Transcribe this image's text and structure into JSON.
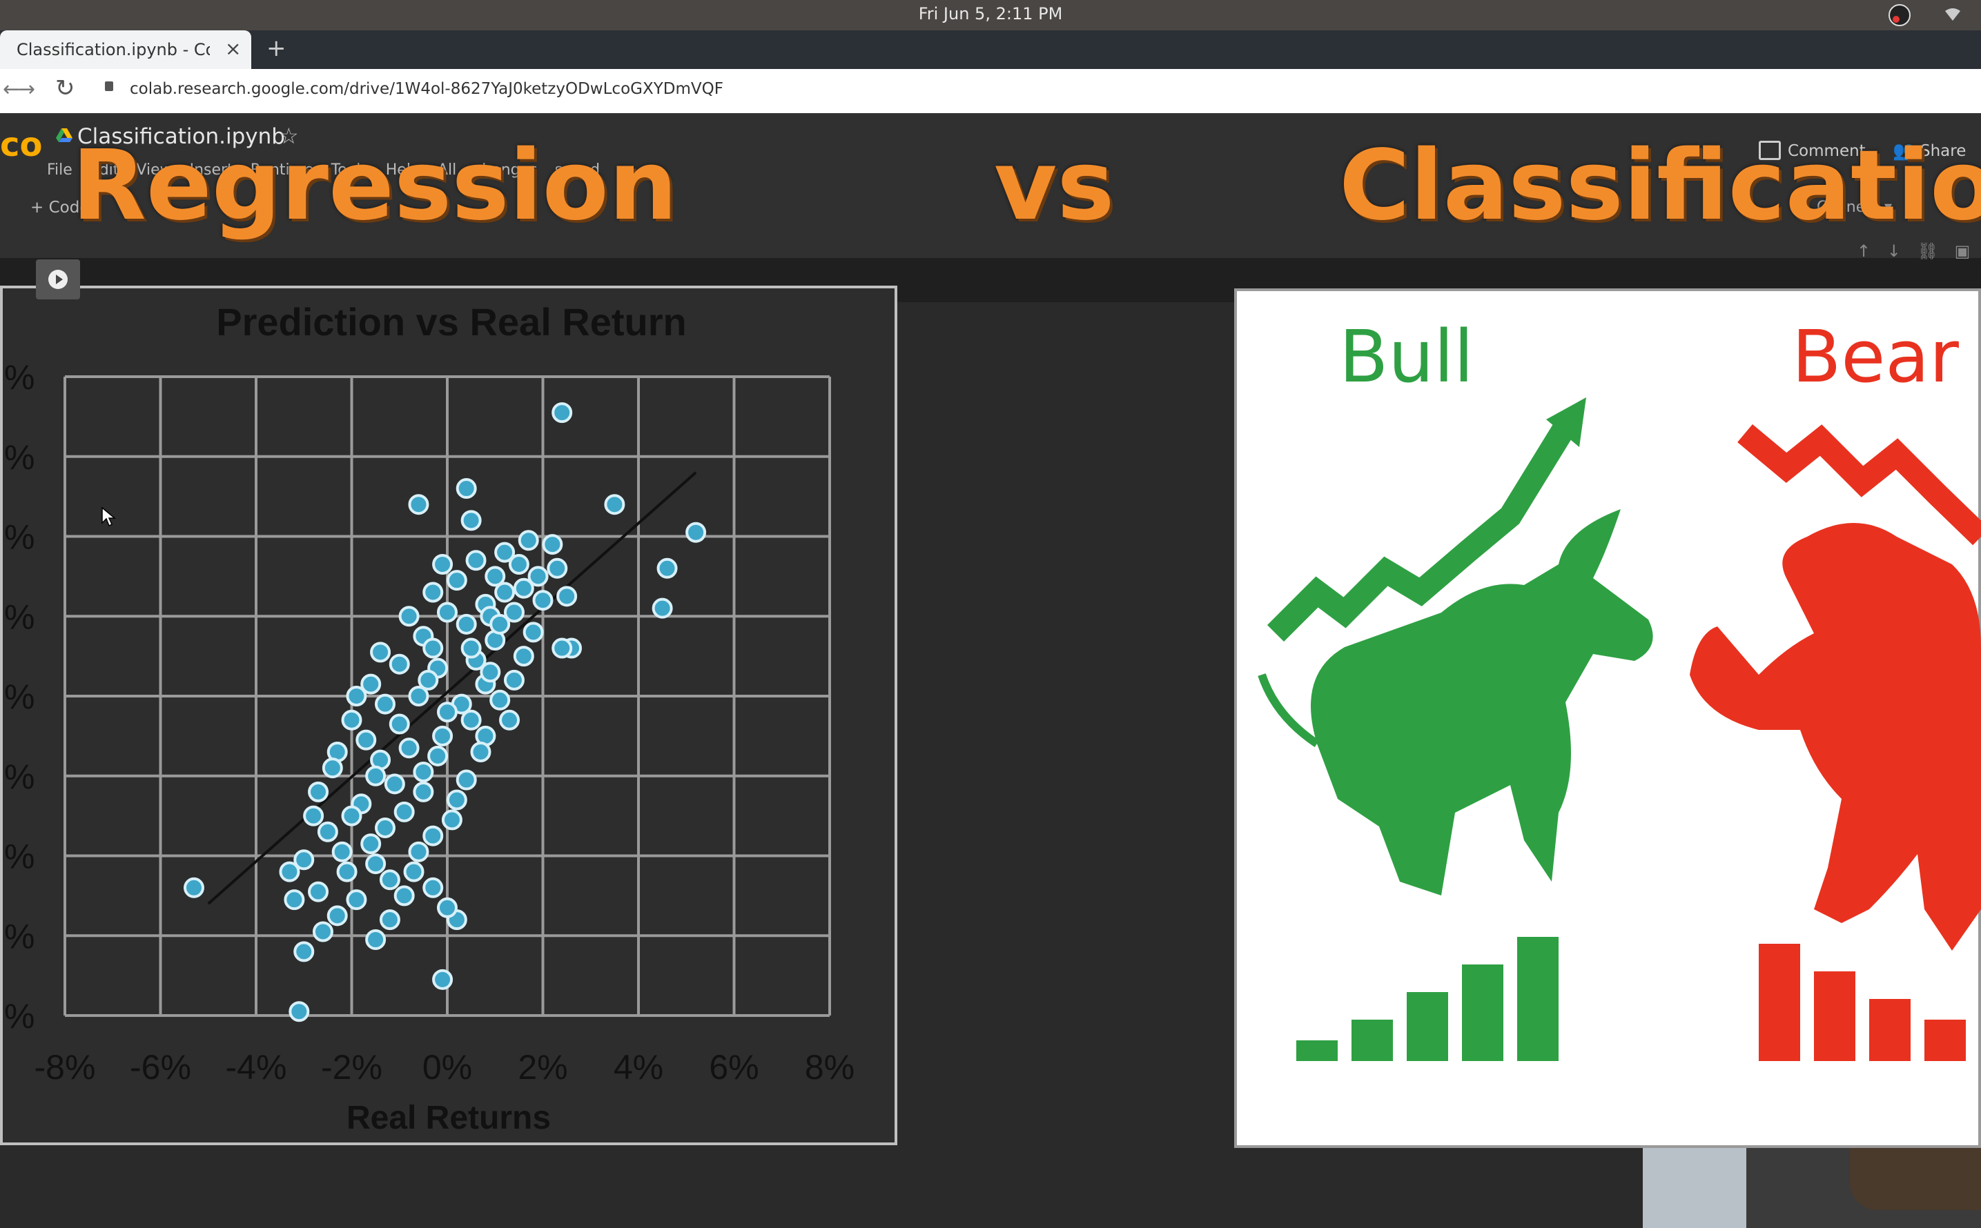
{
  "os": {
    "clock": "Fri Jun  5,  2:11 PM"
  },
  "browser": {
    "tab_title": "Classification.ipynb - Cola",
    "close_glyph": "×",
    "new_tab_glyph": "+",
    "url": "colab.research.google.com/drive/1W4ol-8627YaJ0ketzyODwLcoGXYDmVQF"
  },
  "colab": {
    "logo": "co",
    "notebook_title": "Classification.ipynb",
    "menu": "File Edit View Insert Runtime Tools Help All changes saved",
    "comment_label": "Comment",
    "share_label": "Share",
    "add_code_label": "+ Code",
    "connect_label": "Connect ▾"
  },
  "overlay": {
    "left": "Regression",
    "middle": "vs",
    "right": "Classification"
  },
  "chart_data": {
    "type": "scatter",
    "title": "Prediction vs Real Return",
    "xlabel": "Real Returns",
    "ylabel": "",
    "xlim": [
      -8,
      8
    ],
    "ylim": [
      -8,
      8
    ],
    "x_ticks": [
      "-8%",
      "-6%",
      "-4%",
      "-2%",
      "0%",
      "2%",
      "4%",
      "6%",
      "8%"
    ],
    "y_ticks": [
      "%",
      "%",
      "%",
      "%",
      "%",
      "%",
      "%",
      "%",
      "%"
    ],
    "grid": true,
    "trendline": [
      [
        -5,
        -5.2
      ],
      [
        5.2,
        5.6
      ]
    ],
    "points": [
      [
        2.4,
        7.1
      ],
      [
        0.4,
        5.2
      ],
      [
        -0.6,
        4.8
      ],
      [
        0.5,
        4.4
      ],
      [
        3.5,
        4.8
      ],
      [
        5.2,
        4.1
      ],
      [
        4.6,
        3.2
      ],
      [
        4.5,
        2.2
      ],
      [
        2.6,
        1.2
      ],
      [
        2.4,
        1.2
      ],
      [
        -5.3,
        -4.8
      ],
      [
        -3.2,
        -5.1
      ],
      [
        -3.0,
        -6.4
      ],
      [
        -2.6,
        -5.9
      ],
      [
        -1.5,
        -6.1
      ],
      [
        -0.1,
        -7.1
      ],
      [
        -3.1,
        -7.9
      ],
      [
        0.2,
        -5.6
      ],
      [
        1.7,
        3.9
      ],
      [
        2.2,
        3.8
      ],
      [
        2.3,
        3.2
      ],
      [
        1.5,
        3.3
      ],
      [
        1.0,
        3.0
      ],
      [
        0.2,
        2.9
      ],
      [
        -0.3,
        2.6
      ],
      [
        0.8,
        2.3
      ],
      [
        1.4,
        2.1
      ],
      [
        0.4,
        1.8
      ],
      [
        -0.5,
        1.5
      ],
      [
        1.0,
        1.4
      ],
      [
        1.6,
        1.0
      ],
      [
        0.6,
        0.9
      ],
      [
        -0.2,
        0.7
      ],
      [
        -1.0,
        0.8
      ],
      [
        0.8,
        0.3
      ],
      [
        1.4,
        0.4
      ],
      [
        -1.6,
        0.3
      ],
      [
        -0.6,
        0.0
      ],
      [
        0.3,
        -0.2
      ],
      [
        1.1,
        -0.1
      ],
      [
        -2.0,
        -0.6
      ],
      [
        -1.0,
        -0.7
      ],
      [
        -0.1,
        -1.0
      ],
      [
        0.8,
        -1.0
      ],
      [
        -2.3,
        -1.4
      ],
      [
        -1.4,
        -1.6
      ],
      [
        -0.5,
        -1.9
      ],
      [
        0.4,
        -2.1
      ],
      [
        -2.7,
        -2.4
      ],
      [
        -1.8,
        -2.7
      ],
      [
        -0.9,
        -2.9
      ],
      [
        0.1,
        -3.1
      ],
      [
        -2.5,
        -3.4
      ],
      [
        -1.6,
        -3.7
      ],
      [
        -0.6,
        -3.9
      ],
      [
        -3.0,
        -4.1
      ],
      [
        -2.1,
        -4.4
      ],
      [
        -1.2,
        -4.6
      ],
      [
        -0.3,
        -4.8
      ],
      [
        0.0,
        -5.3
      ],
      [
        -2.7,
        -4.9
      ],
      [
        -1.9,
        -5.1
      ],
      [
        -0.9,
        -5.0
      ],
      [
        1.6,
        2.7
      ],
      [
        2.0,
        2.4
      ],
      [
        1.8,
        1.6
      ],
      [
        0.9,
        2.0
      ],
      [
        0.0,
        2.1
      ],
      [
        -0.8,
        2.0
      ],
      [
        0.5,
        1.2
      ],
      [
        -0.4,
        0.4
      ],
      [
        -1.3,
        -0.2
      ],
      [
        0.5,
        -0.6
      ],
      [
        -1.7,
        -1.1
      ],
      [
        -0.2,
        -1.5
      ],
      [
        -1.1,
        -2.2
      ],
      [
        0.2,
        -2.6
      ],
      [
        -2.0,
        -3.0
      ],
      [
        -1.3,
        -3.3
      ],
      [
        -0.3,
        -3.5
      ],
      [
        -2.2,
        -3.9
      ],
      [
        -1.5,
        -4.2
      ],
      [
        -0.7,
        -4.4
      ],
      [
        1.2,
        3.6
      ],
      [
        0.6,
        3.4
      ],
      [
        -0.1,
        3.3
      ],
      [
        1.9,
        3.0
      ],
      [
        2.5,
        2.5
      ],
      [
        1.2,
        2.6
      ],
      [
        -1.4,
        1.1
      ],
      [
        -1.9,
        0.0
      ],
      [
        -2.4,
        -1.8
      ],
      [
        1.3,
        -0.6
      ],
      [
        0.7,
        -1.4
      ],
      [
        -0.5,
        -2.4
      ],
      [
        -1.5,
        -2.0
      ],
      [
        0.9,
        0.6
      ],
      [
        -0.3,
        1.2
      ],
      [
        1.1,
        1.8
      ],
      [
        0.0,
        -0.4
      ],
      [
        -0.8,
        -1.3
      ],
      [
        -2.8,
        -3.0
      ],
      [
        -3.3,
        -4.4
      ],
      [
        -2.3,
        -5.5
      ],
      [
        -1.2,
        -5.6
      ]
    ]
  },
  "right_image": {
    "bull": "Bull",
    "bear": "Bear"
  }
}
